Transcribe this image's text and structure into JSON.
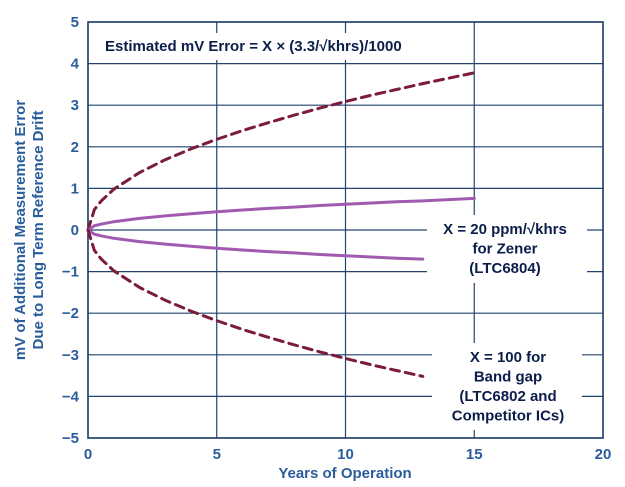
{
  "chart_data": {
    "type": "line",
    "title": "",
    "xlabel": "Years of Operation",
    "ylabel_lines": [
      "mV of Additional Measurement Error",
      "Due to Long Term Reference Drift"
    ],
    "xlim": [
      0,
      20
    ],
    "ylim": [
      -5,
      5
    ],
    "xticks": [
      "0",
      "5",
      "10",
      "15",
      "20"
    ],
    "yticks": [
      "5",
      "4",
      "3",
      "2",
      "1",
      "0",
      "−1",
      "−2",
      "−3",
      "−4",
      "−5"
    ],
    "grid": true,
    "formula_text": "Estimated mV Error = X × (3.3/√khrs)/1000",
    "annotations": [
      {
        "lines": [
          "X = 20 ppm/√khrs",
          "for Zener",
          "(LTC6804)"
        ]
      },
      {
        "lines": [
          "X = 100 for",
          "Band gap",
          "(LTC6802 and",
          "Competitor ICs)"
        ]
      }
    ],
    "series": [
      {
        "style": "dashed",
        "color": "#7b1c3c",
        "x": [
          0,
          0.25,
          0.5,
          1,
          2,
          3,
          4,
          5,
          6,
          7,
          8,
          9,
          10,
          11,
          12,
          13,
          14,
          15
        ],
        "y": [
          0,
          0.49,
          0.69,
          0.98,
          1.38,
          1.69,
          1.95,
          2.18,
          2.39,
          2.58,
          2.76,
          2.93,
          3.09,
          3.24,
          3.38,
          3.52,
          3.65,
          3.78
        ]
      },
      {
        "style": "solid",
        "color": "#a05bb0",
        "x": [
          0,
          0.25,
          0.5,
          1,
          2,
          3,
          4,
          5,
          6,
          7,
          8,
          9,
          10,
          11,
          12,
          13,
          14,
          15
        ],
        "y": [
          0,
          0.1,
          0.14,
          0.2,
          0.28,
          0.34,
          0.39,
          0.44,
          0.48,
          0.52,
          0.55,
          0.59,
          0.62,
          0.65,
          0.68,
          0.7,
          0.73,
          0.76
        ]
      },
      {
        "style": "solid",
        "color": "#a05bb0",
        "x": [
          0,
          0.25,
          0.5,
          1,
          2,
          3,
          4,
          5,
          6,
          7,
          8,
          9,
          10,
          11,
          12,
          13
        ],
        "y": [
          0,
          -0.1,
          -0.14,
          -0.2,
          -0.28,
          -0.34,
          -0.39,
          -0.44,
          -0.48,
          -0.52,
          -0.55,
          -0.59,
          -0.62,
          -0.65,
          -0.68,
          -0.7
        ]
      },
      {
        "style": "dashed",
        "color": "#7b1c3c",
        "x": [
          0,
          0.25,
          0.5,
          1,
          2,
          3,
          4,
          5,
          6,
          7,
          8,
          9,
          10,
          11,
          12,
          13
        ],
        "y": [
          0,
          -0.49,
          -0.69,
          -0.98,
          -1.38,
          -1.69,
          -1.95,
          -2.18,
          -2.39,
          -2.58,
          -2.76,
          -2.93,
          -3.09,
          -3.24,
          -3.38,
          -3.52
        ]
      }
    ]
  }
}
